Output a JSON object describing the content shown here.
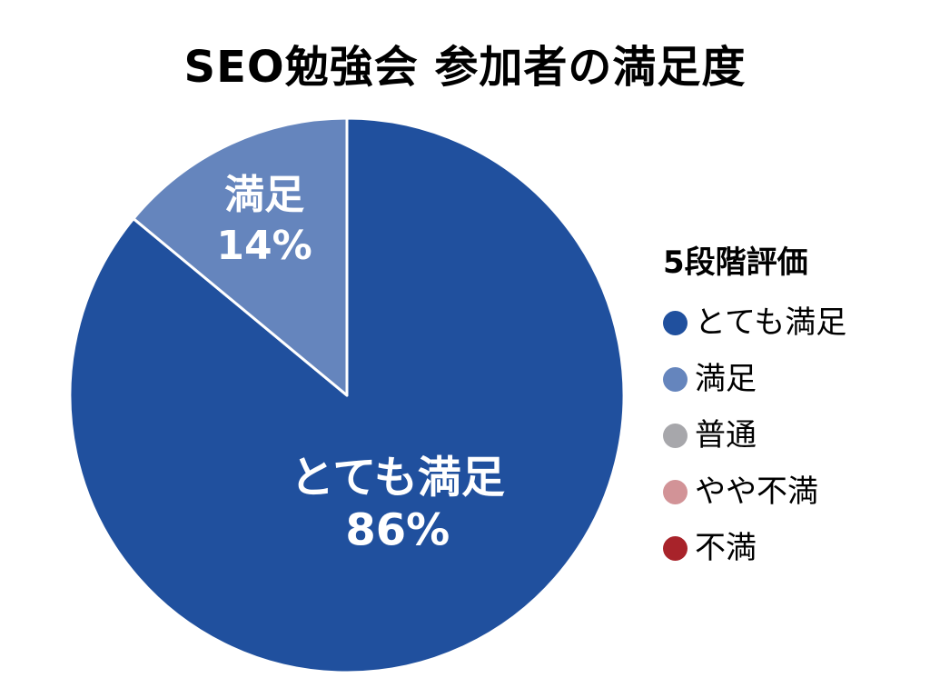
{
  "chart_data": {
    "type": "pie",
    "title": "SEO勉強会 参加者の満足度",
    "legend": {
      "title": "5段階評価",
      "placement": "right"
    },
    "categories": [
      "とても満足",
      "満足",
      "普通",
      "やや不満",
      "不満"
    ],
    "values": [
      86,
      14,
      0,
      0,
      0
    ],
    "unit": "%",
    "colors": [
      "#20509e",
      "#6585bd",
      "#a7a7ab",
      "#d29397",
      "#a8232a"
    ],
    "slice_labels": [
      {
        "name": "とても満足",
        "value": "86%"
      },
      {
        "name": "満足",
        "value": "14%"
      }
    ]
  }
}
